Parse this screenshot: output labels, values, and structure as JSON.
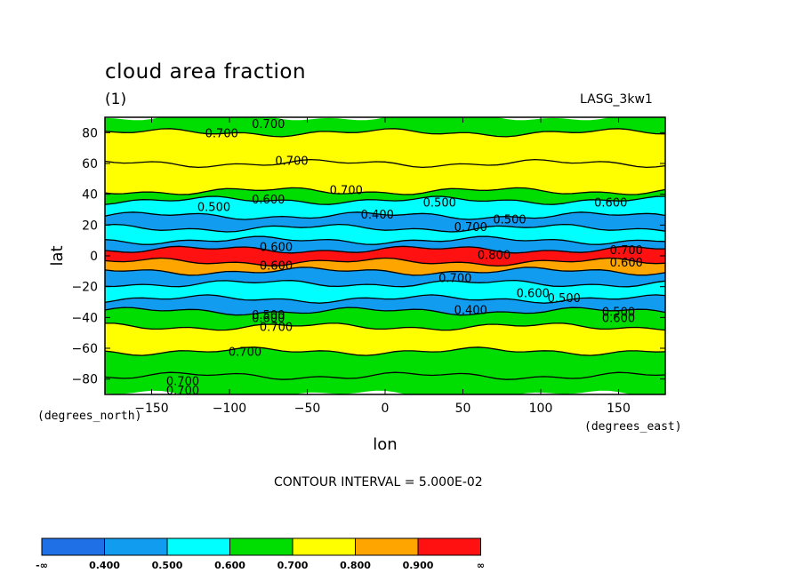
{
  "header": {
    "title": "cloud area fraction",
    "subtitle": "(1)",
    "model": "LASG_3kw1",
    "contour_interval": "CONTOUR INTERVAL = 5.000E-02"
  },
  "chart_data": {
    "type": "heatmap",
    "title": "cloud area fraction",
    "units": "(1)",
    "xlabel": "lon",
    "ylabel": "lat",
    "xunit": "(degrees_east)",
    "yunit": "(degrees_north)",
    "xlim": [
      -180,
      180
    ],
    "ylim": [
      -90,
      90
    ],
    "xticks": [
      -150,
      -100,
      -50,
      0,
      50,
      100,
      150
    ],
    "yticks": [
      80,
      60,
      40,
      20,
      0,
      -20,
      -40,
      -60,
      -80
    ],
    "xtick_labels": [
      "−150",
      "−100",
      "−50",
      "0",
      "50",
      "100",
      "150"
    ],
    "ytick_labels": [
      "80",
      "60",
      "40",
      "20",
      "0",
      "−20",
      "−40",
      "−60",
      "−80"
    ],
    "contour_interval": 0.05,
    "levels": [
      "-∞",
      "0.400",
      "0.500",
      "0.600",
      "0.700",
      "0.800",
      "0.900",
      "∞"
    ],
    "level_colors": [
      "#1f6fe6",
      "#129cf0",
      "#00ffff",
      "#00dd00",
      "#ffff00",
      "#ffa500",
      "#ff1111"
    ],
    "zonal_bands": [
      {
        "lat_range": [
          80,
          90
        ],
        "class": 3
      },
      {
        "lat_range": [
          60,
          80
        ],
        "class": 4
      },
      {
        "lat_range": [
          42,
          60
        ],
        "class": 4
      },
      {
        "lat_range": [
          36,
          42
        ],
        "class": 3
      },
      {
        "lat_range": [
          26,
          36
        ],
        "class": 2
      },
      {
        "lat_range": [
          18,
          26
        ],
        "class": 1
      },
      {
        "lat_range": [
          10,
          18
        ],
        "class": 2
      },
      {
        "lat_range": [
          4,
          10
        ],
        "class": 1
      },
      {
        "lat_range": [
          -4,
          4
        ],
        "class": 6
      },
      {
        "lat_range": [
          -10,
          -4
        ],
        "class": 5
      },
      {
        "lat_range": [
          -18,
          -10
        ],
        "class": 1
      },
      {
        "lat_range": [
          -28,
          -18
        ],
        "class": 2
      },
      {
        "lat_range": [
          -36,
          -28
        ],
        "class": 1
      },
      {
        "lat_range": [
          -46,
          -36
        ],
        "class": 3
      },
      {
        "lat_range": [
          -62,
          -46
        ],
        "class": 4
      },
      {
        "lat_range": [
          -78,
          -62
        ],
        "class": 3
      },
      {
        "lat_range": [
          -90,
          -78
        ],
        "class": 3
      }
    ],
    "contour_labels": [
      {
        "text": "0.700",
        "lon": -75,
        "lat": 86
      },
      {
        "text": "0.700",
        "lon": -105,
        "lat": 80
      },
      {
        "text": "0.700",
        "lon": -60,
        "lat": 62
      },
      {
        "text": "0.700",
        "lon": -25,
        "lat": 43
      },
      {
        "text": "0.600",
        "lon": -75,
        "lat": 37
      },
      {
        "text": "0.500",
        "lon": -110,
        "lat": 32
      },
      {
        "text": "0.500",
        "lon": 35,
        "lat": 35
      },
      {
        "text": "0.400",
        "lon": -5,
        "lat": 27
      },
      {
        "text": "0.700",
        "lon": 55,
        "lat": 19
      },
      {
        "text": "0.500",
        "lon": 80,
        "lat": 24
      },
      {
        "text": "0.600",
        "lon": 145,
        "lat": 35
      },
      {
        "text": "0.800",
        "lon": 70,
        "lat": 1
      },
      {
        "text": "0.700",
        "lon": 155,
        "lat": 4
      },
      {
        "text": "0.600",
        "lon": 155,
        "lat": -4
      },
      {
        "text": "0.600",
        "lon": -70,
        "lat": 6
      },
      {
        "text": "0.600",
        "lon": -70,
        "lat": -6
      },
      {
        "text": "0.700",
        "lon": 45,
        "lat": -14
      },
      {
        "text": "0.600",
        "lon": 95,
        "lat": -24
      },
      {
        "text": "0.500",
        "lon": 115,
        "lat": -27
      },
      {
        "text": "0.400",
        "lon": 55,
        "lat": -35
      },
      {
        "text": "0.500",
        "lon": -75,
        "lat": -38
      },
      {
        "text": "0.600",
        "lon": -75,
        "lat": -40
      },
      {
        "text": "0.700",
        "lon": -70,
        "lat": -46
      },
      {
        "text": "0.500",
        "lon": 150,
        "lat": -36
      },
      {
        "text": "0.600",
        "lon": 150,
        "lat": -40
      },
      {
        "text": "0.700",
        "lon": -90,
        "lat": -62
      },
      {
        "text": "0.700",
        "lon": -130,
        "lat": -81
      },
      {
        "text": "0.700",
        "lon": -130,
        "lat": -87
      }
    ]
  }
}
